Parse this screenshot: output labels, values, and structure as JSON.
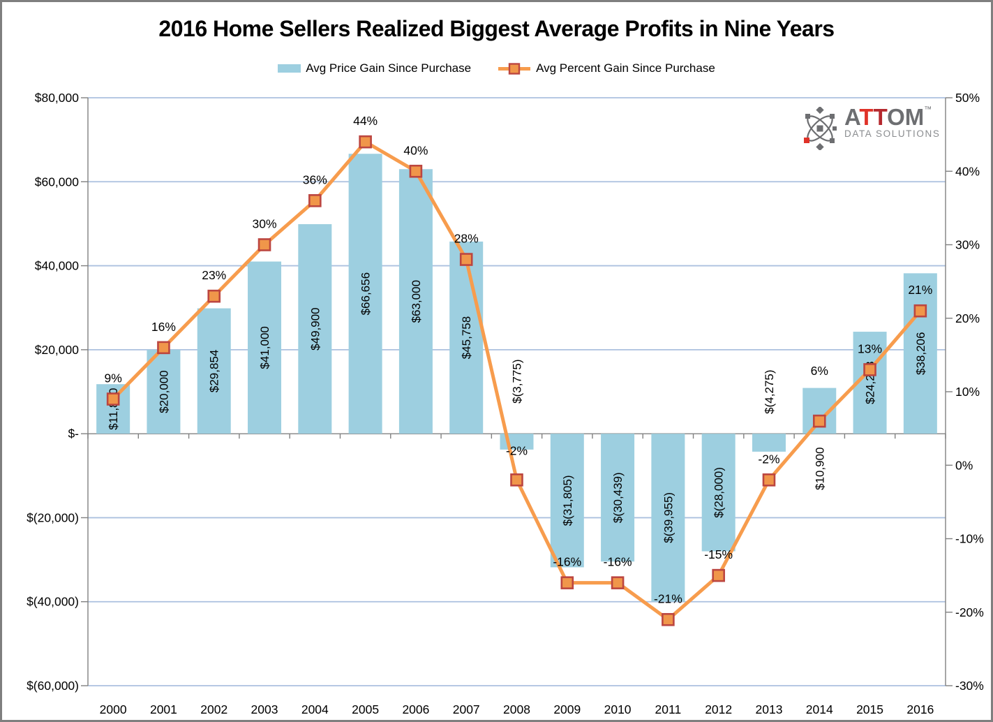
{
  "title": "2016 Home Sellers Realized Biggest Average Profits in Nine Years",
  "legend": {
    "items": [
      {
        "label": "Avg Price Gain Since Purchase",
        "marker": "bar-swatch"
      },
      {
        "label": "Avg Percent Gain Since Purchase",
        "marker": "line-square-marker"
      }
    ]
  },
  "logo": {
    "brand_gray_left": "A",
    "brand_red_t1": "T",
    "brand_red_t2": "T",
    "brand_gray_right": "OM",
    "trademark": "™",
    "tagline": "DATA SOLUTIONS"
  },
  "colors": {
    "bar_fill": "#9DCFE0",
    "line": "#F79C4D",
    "marker_fill": "#F0964A",
    "marker_stroke": "#BC4640",
    "gridline": "#ABC0DF",
    "axis": "#808080",
    "text": "#000000",
    "logo_gray": "#6D6E71",
    "logo_red_1": "#E03228",
    "logo_red_2": "#B5292E",
    "logo_tagline_gray": "#8A8C8F"
  },
  "chart_data": {
    "type": "combo-bar-line",
    "title": "2016 Home Sellers Realized Biggest Average Profits in Nine Years",
    "grid": true,
    "legend_position": "top-center",
    "categories": [
      "2000",
      "2001",
      "2002",
      "2003",
      "2004",
      "2005",
      "2006",
      "2007",
      "2008",
      "2009",
      "2010",
      "2011",
      "2012",
      "2013",
      "2014",
      "2015",
      "2016"
    ],
    "series": [
      {
        "name": "Avg Price Gain Since Purchase",
        "type": "bar",
        "axis": "left",
        "values": [
          11800,
          20000,
          29854,
          41000,
          49900,
          66656,
          63000,
          45758,
          -3775,
          -31805,
          -30439,
          -39955,
          -28000,
          -4275,
          10900,
          24288,
          38206
        ],
        "labels": [
          "$11,800",
          "$20,000",
          "$29,854",
          "$41,000",
          "$49,900",
          "$66,656",
          "$63,000",
          "$45,758",
          "$(3,775)",
          "$(31,805)",
          "$(30,439)",
          "$(39,955)",
          "$(28,000)",
          "$(4,275)",
          "$10,900",
          "$24,288",
          "$38,206"
        ]
      },
      {
        "name": "Avg Percent Gain Since Purchase",
        "type": "line",
        "axis": "right",
        "values": [
          9,
          16,
          23,
          30,
          36,
          44,
          40,
          28,
          -2,
          -16,
          -16,
          -21,
          -15,
          -2,
          6,
          13,
          21
        ],
        "labels": [
          "9%",
          "16%",
          "23%",
          "30%",
          "36%",
          "44%",
          "40%",
          "28%",
          "-2%",
          "-16%",
          "-16%",
          "-21%",
          "-15%",
          "-2%",
          "6%",
          "13%",
          "21%"
        ]
      }
    ],
    "left_axis": {
      "min": -60000,
      "max": 80000,
      "tick_values": [
        80000,
        60000,
        40000,
        20000,
        0,
        -20000,
        -40000,
        -60000
      ],
      "tick_labels": [
        "$80,000",
        "$60,000",
        "$40,000",
        "$20,000",
        "$-",
        "$(20,000)",
        "$(40,000)",
        "$(60,000)"
      ]
    },
    "right_axis": {
      "min": -30,
      "max": 50,
      "tick_values": [
        50,
        40,
        30,
        20,
        10,
        0,
        -10,
        -20,
        -30
      ],
      "tick_labels": [
        "50%",
        "40%",
        "30%",
        "20%",
        "10%",
        "0%",
        "-10%",
        "-20%",
        "-30%"
      ]
    }
  }
}
